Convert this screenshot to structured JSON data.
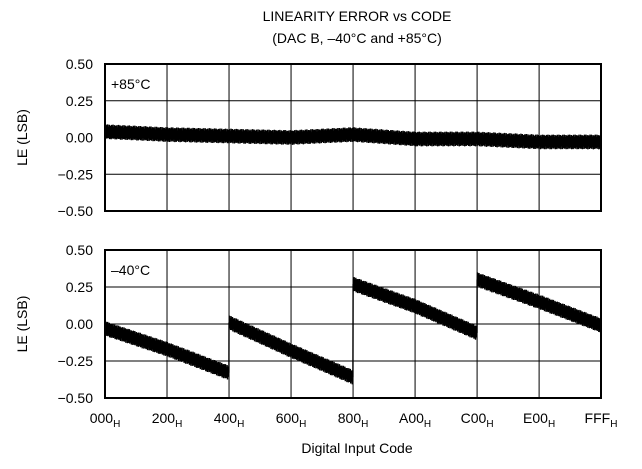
{
  "chart_data": {
    "type": "line",
    "title": [
      "LINEARITY ERROR  vs CODE",
      "(DAC B, –40°C and +85°C)"
    ],
    "xlabel": "Digital Input Code",
    "x_ticks": [
      {
        "code": 0,
        "main": "000",
        "sub": "H"
      },
      {
        "code": 512,
        "main": "200",
        "sub": "H"
      },
      {
        "code": 1024,
        "main": "400",
        "sub": "H"
      },
      {
        "code": 1536,
        "main": "600",
        "sub": "H"
      },
      {
        "code": 2048,
        "main": "800",
        "sub": "H"
      },
      {
        "code": 2560,
        "main": "A00",
        "sub": "H"
      },
      {
        "code": 3072,
        "main": "C00",
        "sub": "H"
      },
      {
        "code": 3584,
        "main": "E00",
        "sub": "H"
      },
      {
        "code": 4095,
        "main": "FFF",
        "sub": "H"
      }
    ],
    "xlim": [
      0,
      4095
    ],
    "panels": [
      {
        "label": "+85°C",
        "ylabel": "LE (LSB)",
        "ylim": [
          -0.5,
          0.5
        ],
        "yticks": [
          "0.50",
          "0.25",
          "0.00",
          "−0.25",
          "−0.50"
        ],
        "ytick_values": [
          0.5,
          0.25,
          0.0,
          -0.25,
          -0.5
        ],
        "grid": true,
        "series": [
          {
            "x": [
              0,
              512,
              1024,
              1536,
              2048,
              2560,
              3072,
              3584,
              4095
            ],
            "y": [
              0.04,
              0.02,
              0.01,
              0.0,
              0.02,
              -0.01,
              -0.01,
              -0.03,
              -0.03
            ],
            "band": 0.05
          }
        ]
      },
      {
        "label": "–40°C",
        "ylabel": "LE (LSB)",
        "ylim": [
          -0.5,
          0.5
        ],
        "yticks": [
          "0.50",
          "0.25",
          "0.00",
          "−0.25",
          "−0.50"
        ],
        "ytick_values": [
          0.5,
          0.25,
          0.0,
          -0.25,
          -0.5
        ],
        "grid": true,
        "series": [
          {
            "x": [
              0,
              512,
              1023,
              1024,
              1536,
              2047,
              2048,
              2560,
              3071,
              3072,
              3584,
              4095
            ],
            "y": [
              -0.03,
              -0.17,
              -0.33,
              0.01,
              -0.18,
              -0.36,
              0.27,
              0.12,
              -0.06,
              0.3,
              0.15,
              -0.01
            ],
            "band": 0.05
          }
        ]
      }
    ]
  }
}
